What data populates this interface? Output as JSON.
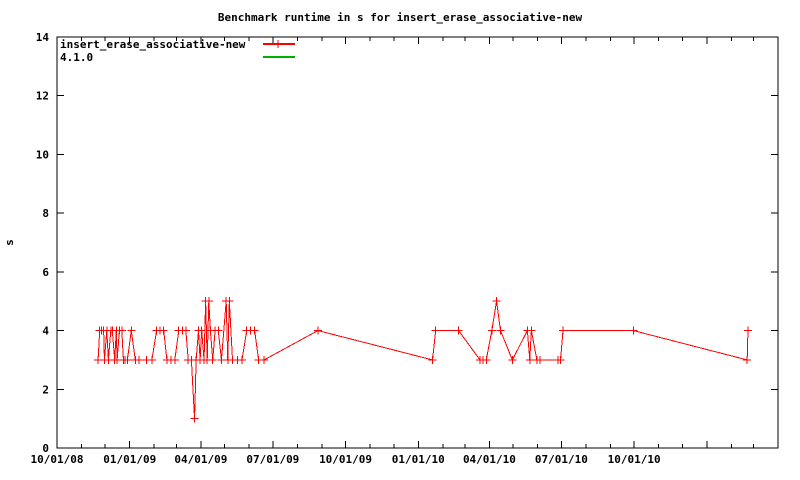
{
  "title": "Benchmark runtime in s for insert_erase_associative-new",
  "legend": [
    {
      "label": "insert_erase_associative-new",
      "color": "#ff0000",
      "marker": "plus"
    },
    {
      "label": "4.1.0",
      "color": "#00b000",
      "marker": "none"
    }
  ],
  "chart_data": {
    "type": "line",
    "title": "Benchmark runtime in s for insert_erase_associative-new",
    "xlabel": "",
    "ylabel": "s",
    "ylim": [
      0,
      14
    ],
    "y_ticks": [
      0,
      2,
      4,
      6,
      8,
      10,
      12,
      14
    ],
    "x_range": [
      "2008-10-01",
      "2011-04-01"
    ],
    "x_tick_labels": [
      "10/01/08",
      "01/01/09",
      "04/01/09",
      "07/01/09",
      "10/01/09",
      "01/01/10",
      "04/01/10",
      "07/01/10",
      "10/01/10"
    ],
    "x_minor_tick": "monthly",
    "grid": false,
    "legend_position": "top-left-inside",
    "series": [
      {
        "name": "insert_erase_associative-new",
        "color": "#ff0000",
        "marker": "plus",
        "points": [
          [
            "2008-11-22",
            3
          ],
          [
            "2008-11-24",
            4
          ],
          [
            "2008-11-26",
            4
          ],
          [
            "2008-11-29",
            4
          ],
          [
            "2008-11-30",
            3
          ],
          [
            "2008-12-03",
            4
          ],
          [
            "2008-12-05",
            3
          ],
          [
            "2008-12-08",
            4
          ],
          [
            "2008-12-10",
            4
          ],
          [
            "2008-12-13",
            3
          ],
          [
            "2008-12-15",
            4
          ],
          [
            "2008-12-16",
            3
          ],
          [
            "2008-12-19",
            4
          ],
          [
            "2008-12-22",
            4
          ],
          [
            "2008-12-24",
            3
          ],
          [
            "2008-12-26",
            3
          ],
          [
            "2008-12-29",
            3
          ],
          [
            "2009-01-03",
            4
          ],
          [
            "2009-01-08",
            3
          ],
          [
            "2009-01-13",
            3
          ],
          [
            "2009-01-22",
            3
          ],
          [
            "2009-01-29",
            3
          ],
          [
            "2009-02-04",
            4
          ],
          [
            "2009-02-08",
            4
          ],
          [
            "2009-02-13",
            4
          ],
          [
            "2009-02-17",
            3
          ],
          [
            "2009-02-22",
            3
          ],
          [
            "2009-02-27",
            3
          ],
          [
            "2009-03-04",
            4
          ],
          [
            "2009-03-09",
            4
          ],
          [
            "2009-03-13",
            4
          ],
          [
            "2009-03-16",
            3
          ],
          [
            "2009-03-20",
            3
          ],
          [
            "2009-03-24",
            1
          ],
          [
            "2009-03-26",
            3
          ],
          [
            "2009-03-29",
            4
          ],
          [
            "2009-03-31",
            3
          ],
          [
            "2009-04-02",
            4
          ],
          [
            "2009-04-05",
            3
          ],
          [
            "2009-04-07",
            5
          ],
          [
            "2009-04-09",
            3
          ],
          [
            "2009-04-11",
            5
          ],
          [
            "2009-04-13",
            4
          ],
          [
            "2009-04-16",
            3
          ],
          [
            "2009-04-19",
            4
          ],
          [
            "2009-04-23",
            4
          ],
          [
            "2009-04-27",
            3
          ],
          [
            "2009-05-03",
            5
          ],
          [
            "2009-05-05",
            3
          ],
          [
            "2009-05-07",
            5
          ],
          [
            "2009-05-11",
            3
          ],
          [
            "2009-05-17",
            3
          ],
          [
            "2009-05-23",
            3
          ],
          [
            "2009-05-29",
            4
          ],
          [
            "2009-06-03",
            4
          ],
          [
            "2009-06-08",
            4
          ],
          [
            "2009-06-13",
            3
          ],
          [
            "2009-06-20",
            3
          ],
          [
            "2009-08-27",
            4
          ],
          [
            "2010-01-19",
            3
          ],
          [
            "2010-01-23",
            4
          ],
          [
            "2010-02-21",
            4
          ],
          [
            "2010-03-20",
            3
          ],
          [
            "2010-03-24",
            3
          ],
          [
            "2010-03-28",
            3
          ],
          [
            "2010-04-04",
            4
          ],
          [
            "2010-04-10",
            5
          ],
          [
            "2010-04-15",
            4
          ],
          [
            "2010-04-30",
            3
          ],
          [
            "2010-05-19",
            4
          ],
          [
            "2010-05-22",
            3
          ],
          [
            "2010-05-24",
            4
          ],
          [
            "2010-05-31",
            3
          ],
          [
            "2010-06-04",
            3
          ],
          [
            "2010-06-27",
            3
          ],
          [
            "2010-06-30",
            3
          ],
          [
            "2010-07-03",
            4
          ],
          [
            "2010-09-30",
            4
          ],
          [
            "2011-02-21",
            3
          ],
          [
            "2011-02-22",
            4
          ]
        ]
      },
      {
        "name": "4.1.0",
        "color": "#00b000",
        "marker": "none",
        "points": []
      }
    ]
  }
}
